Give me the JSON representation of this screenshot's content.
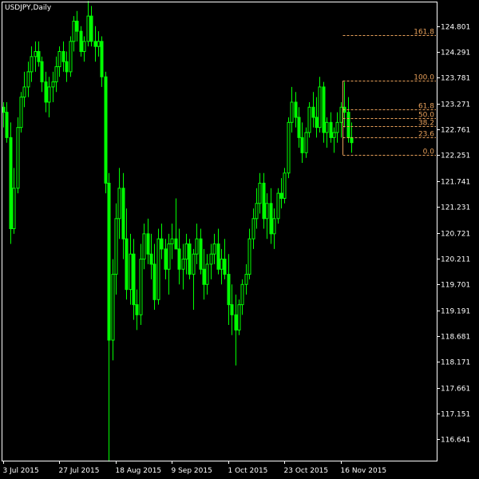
{
  "title": "USDJPY,Daily",
  "colors": {
    "background": "#000000",
    "frame": "#ffffff",
    "candle": "#00ff00",
    "fibonacci": "#e8a05a",
    "text": "#ffffff"
  },
  "chart_data": {
    "type": "candlestick",
    "title": "USDJPY,Daily",
    "ylim": [
      116.22,
      125.27
    ],
    "y_ticks": [
      124.801,
      124.291,
      123.781,
      123.271,
      122.761,
      122.251,
      121.741,
      121.231,
      120.721,
      120.211,
      119.701,
      119.191,
      118.681,
      118.171,
      117.661,
      117.151,
      116.641
    ],
    "x_labels": [
      "3 Jul 2015",
      "27 Jul 2015",
      "18 Aug 2015",
      "9 Sep 2015",
      "1 Oct 2015",
      "23 Oct 2015",
      "16 Nov 2015"
    ],
    "x_label_bar_index": [
      0,
      16,
      32,
      48,
      64,
      80,
      96
    ],
    "grid": false,
    "candles": [
      [
        123.2,
        123.3,
        122.8,
        123.1
      ],
      [
        123.1,
        123.3,
        122.5,
        122.6
      ],
      [
        122.6,
        122.9,
        120.5,
        120.8
      ],
      [
        120.8,
        122.0,
        120.7,
        121.6
      ],
      [
        121.6,
        123.0,
        121.5,
        122.8
      ],
      [
        122.8,
        123.5,
        122.7,
        123.4
      ],
      [
        123.4,
        123.9,
        123.2,
        123.6
      ],
      [
        123.6,
        124.1,
        123.4,
        123.9
      ],
      [
        123.9,
        124.4,
        123.7,
        124.2
      ],
      [
        124.2,
        124.5,
        123.9,
        124.3
      ],
      [
        124.3,
        124.5,
        124.0,
        124.1
      ],
      [
        124.1,
        124.2,
        123.5,
        123.7
      ],
      [
        123.7,
        123.9,
        123.1,
        123.3
      ],
      [
        123.3,
        123.8,
        123.0,
        123.6
      ],
      [
        123.6,
        123.9,
        123.3,
        123.7
      ],
      [
        123.7,
        124.2,
        123.5,
        124.0
      ],
      [
        124.0,
        124.4,
        123.8,
        124.3
      ],
      [
        124.3,
        124.5,
        123.9,
        124.1
      ],
      [
        124.1,
        124.3,
        123.7,
        123.9
      ],
      [
        123.9,
        124.6,
        123.8,
        124.5
      ],
      [
        124.5,
        125.0,
        124.3,
        124.9
      ],
      [
        124.9,
        125.1,
        124.5,
        124.7
      ],
      [
        124.7,
        124.8,
        124.2,
        124.3
      ],
      [
        124.3,
        124.6,
        124.1,
        124.5
      ],
      [
        124.5,
        125.3,
        124.4,
        125.0
      ],
      [
        125.0,
        125.2,
        124.4,
        124.5
      ],
      [
        124.5,
        124.8,
        124.1,
        124.4
      ],
      [
        124.4,
        124.7,
        124.2,
        124.5
      ],
      [
        124.5,
        124.6,
        123.6,
        123.8
      ],
      [
        123.8,
        123.9,
        121.5,
        121.7
      ],
      [
        121.7,
        121.9,
        116.2,
        118.6
      ],
      [
        118.6,
        120.2,
        118.2,
        119.9
      ],
      [
        119.9,
        121.3,
        119.5,
        121.0
      ],
      [
        121.0,
        122.0,
        120.6,
        121.6
      ],
      [
        121.6,
        121.9,
        120.2,
        120.6
      ],
      [
        120.6,
        121.2,
        119.4,
        119.6
      ],
      [
        119.6,
        120.7,
        119.3,
        120.3
      ],
      [
        120.3,
        120.6,
        119.0,
        119.3
      ],
      [
        119.3,
        119.6,
        118.8,
        119.1
      ],
      [
        119.1,
        120.5,
        118.9,
        120.2
      ],
      [
        120.2,
        120.9,
        120.0,
        120.7
      ],
      [
        120.7,
        121.0,
        120.1,
        120.3
      ],
      [
        120.3,
        120.7,
        119.8,
        120.1
      ],
      [
        120.1,
        120.5,
        119.2,
        119.4
      ],
      [
        119.4,
        120.8,
        119.3,
        120.6
      ],
      [
        120.6,
        120.9,
        120.2,
        120.4
      ],
      [
        120.4,
        120.6,
        119.8,
        120.0
      ],
      [
        120.0,
        120.7,
        119.5,
        120.5
      ],
      [
        120.5,
        120.9,
        120.2,
        120.6
      ],
      [
        120.6,
        121.4,
        120.4,
        120.4
      ],
      [
        120.4,
        120.8,
        119.7,
        120.0
      ],
      [
        120.0,
        120.5,
        119.6,
        120.2
      ],
      [
        120.2,
        120.7,
        119.9,
        120.5
      ],
      [
        120.5,
        120.6,
        119.8,
        119.9
      ],
      [
        119.9,
        120.4,
        119.2,
        120.3
      ],
      [
        120.3,
        120.9,
        120.1,
        120.6
      ],
      [
        120.6,
        120.8,
        119.9,
        120.0
      ],
      [
        120.0,
        120.4,
        119.4,
        119.7
      ],
      [
        119.7,
        120.3,
        119.5,
        120.1
      ],
      [
        120.1,
        120.5,
        119.8,
        120.3
      ],
      [
        120.3,
        120.7,
        120.1,
        120.5
      ],
      [
        120.5,
        120.8,
        119.9,
        120.0
      ],
      [
        120.0,
        120.4,
        119.7,
        120.2
      ],
      [
        120.2,
        120.6,
        119.8,
        119.9
      ],
      [
        119.9,
        120.3,
        118.9,
        119.3
      ],
      [
        119.3,
        119.7,
        118.7,
        119.1
      ],
      [
        119.1,
        119.5,
        118.1,
        118.8
      ],
      [
        118.8,
        119.4,
        118.7,
        119.3
      ],
      [
        119.3,
        119.8,
        119.1,
        119.7
      ],
      [
        119.7,
        120.1,
        119.5,
        119.9
      ],
      [
        119.9,
        120.8,
        119.8,
        120.6
      ],
      [
        120.6,
        121.2,
        120.4,
        121.0
      ],
      [
        121.0,
        121.6,
        120.8,
        121.3
      ],
      [
        121.3,
        121.9,
        121.1,
        121.7
      ],
      [
        121.7,
        121.9,
        120.8,
        121.0
      ],
      [
        121.0,
        121.5,
        120.6,
        121.3
      ],
      [
        121.3,
        121.6,
        120.5,
        120.7
      ],
      [
        120.7,
        121.2,
        120.4,
        121.0
      ],
      [
        121.0,
        121.6,
        120.9,
        121.5
      ],
      [
        121.5,
        121.8,
        121.2,
        121.4
      ],
      [
        121.4,
        122.0,
        121.3,
        121.9
      ],
      [
        121.9,
        123.0,
        121.8,
        122.9
      ],
      [
        122.9,
        123.6,
        122.7,
        123.3
      ],
      [
        123.3,
        123.5,
        122.8,
        123.0
      ],
      [
        123.0,
        123.2,
        122.4,
        122.6
      ],
      [
        122.6,
        122.9,
        122.1,
        122.3
      ],
      [
        122.3,
        122.8,
        122.2,
        122.7
      ],
      [
        122.7,
        123.3,
        122.6,
        123.2
      ],
      [
        123.2,
        123.5,
        122.8,
        123.0
      ],
      [
        123.0,
        123.4,
        122.6,
        122.8
      ],
      [
        122.8,
        123.8,
        122.7,
        123.6
      ],
      [
        123.6,
        123.7,
        122.5,
        122.7
      ],
      [
        122.7,
        123.0,
        122.4,
        122.9
      ],
      [
        122.9,
        123.1,
        122.5,
        122.6
      ],
      [
        122.6,
        122.8,
        122.3,
        122.7
      ],
      [
        122.7,
        123.1,
        122.5,
        122.9
      ],
      [
        122.9,
        123.3,
        122.6,
        123.2
      ],
      [
        123.2,
        123.7,
        122.8,
        123.1
      ],
      [
        123.1,
        123.4,
        122.5,
        122.6
      ],
      [
        122.6,
        122.9,
        122.3,
        122.5
      ]
    ],
    "fibonacci": {
      "levels": [
        {
          "label": "161.8",
          "price": 124.62
        },
        {
          "label": "100.0",
          "price": 123.72
        },
        {
          "label": "61.8",
          "price": 123.16
        },
        {
          "label": "50.0",
          "price": 122.99
        },
        {
          "label": "38.2",
          "price": 122.82
        },
        {
          "label": "23.6",
          "price": 122.6
        },
        {
          "label": "0.0",
          "price": 122.26
        }
      ],
      "anchor_bar_index": 97
    }
  }
}
